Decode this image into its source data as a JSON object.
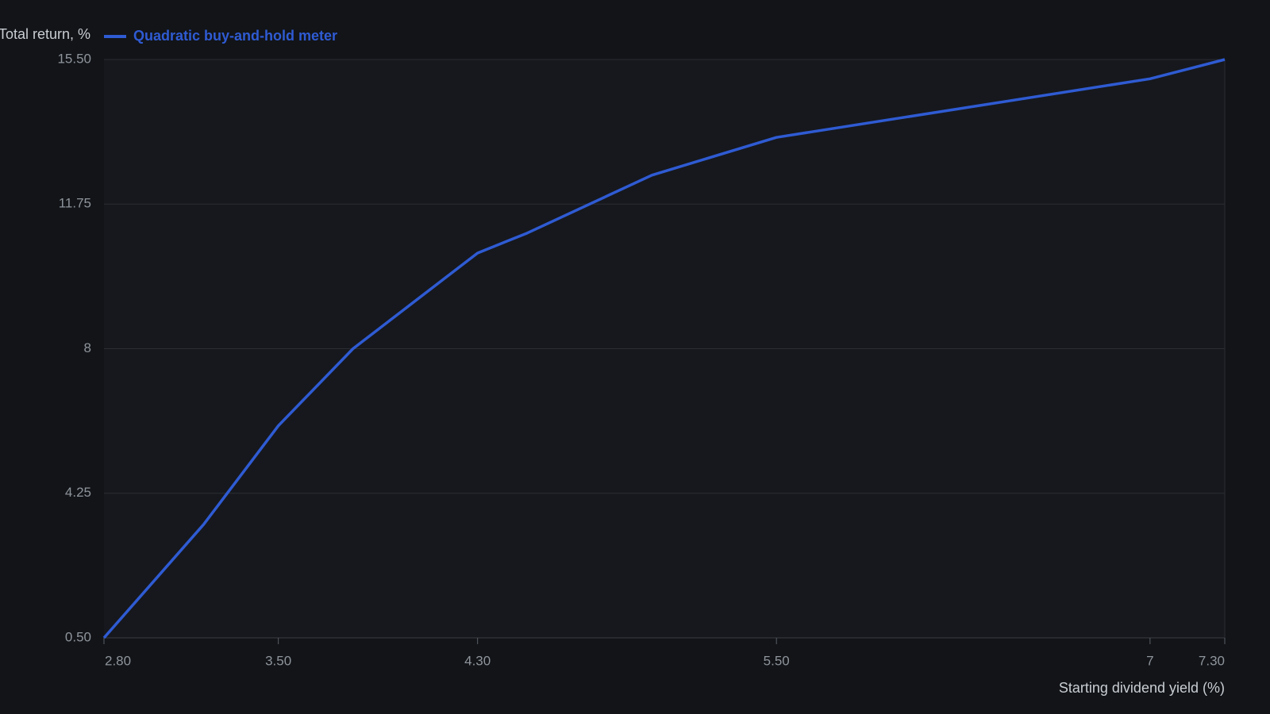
{
  "chart_data": {
    "type": "line",
    "y_label": "Total return, %",
    "x_label": "Starting dividend yield (%)",
    "x": [
      2.8,
      3.2,
      3.5,
      3.8,
      4.3,
      4.5,
      5.0,
      5.5,
      7.0,
      7.3
    ],
    "series": [
      {
        "name": "Quadratic buy-and-hold meter",
        "color": "#2f5bd3",
        "values": [
          0.5,
          3.44,
          6.0,
          8.0,
          10.48,
          11.0,
          12.5,
          13.48,
          15.0,
          15.5
        ]
      }
    ],
    "xlim": [
      2.8,
      7.3
    ],
    "xticks": [
      {
        "value": 2.8,
        "label": "2.80"
      },
      {
        "value": 3.5,
        "label": "3.50"
      },
      {
        "value": 4.3,
        "label": "4.30"
      },
      {
        "value": 5.5,
        "label": "5.50"
      },
      7,
      {
        "value": 7.3,
        "label": "7.30"
      }
    ],
    "ylim": [
      0.5,
      15.5
    ],
    "yticks": [
      {
        "value": 0.5,
        "label": "0.50"
      },
      4.25,
      8,
      11.75,
      {
        "value": 15.5,
        "label": "15.50"
      }
    ],
    "grid": true
  }
}
